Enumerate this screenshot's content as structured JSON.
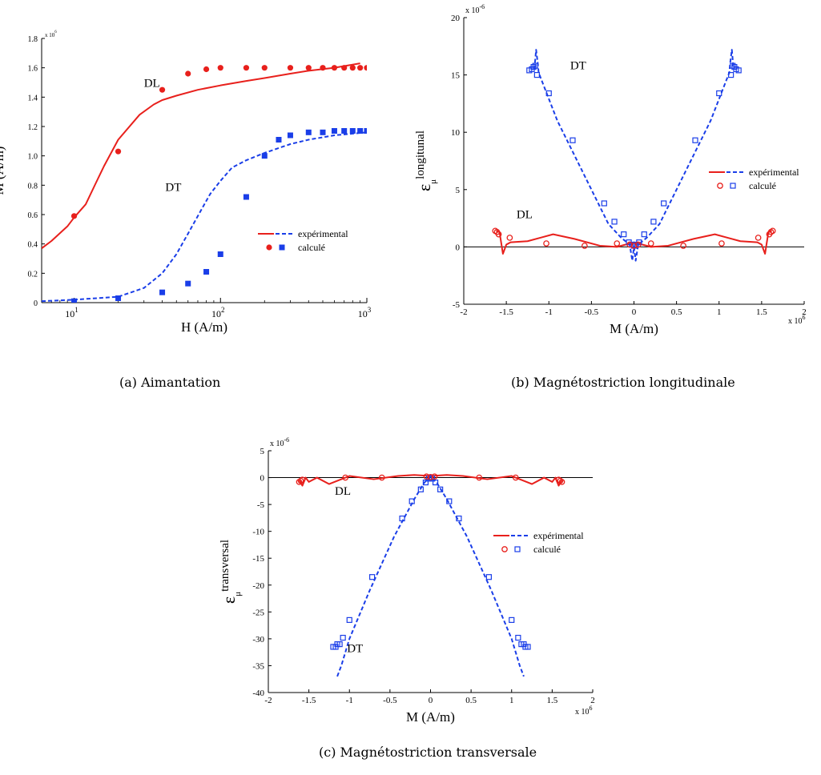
{
  "colors": {
    "experimental_red": "#e8201c",
    "experimental_blue": "#1a3ee8",
    "axis": "#000000"
  },
  "chart_data": [
    {
      "id": "a",
      "caption": "(a)  Aimantation",
      "type": "line",
      "xscale": "log",
      "xlim": [
        6,
        1000
      ],
      "ylim": [
        0,
        1800000
      ],
      "x_exponent_label": "x 10",
      "x_exponent_sup": "6",
      "yticks": [
        0,
        200000,
        400000,
        600000,
        800000,
        1000000,
        1200000,
        1400000,
        1600000,
        1800000
      ],
      "ytick_labels": [
        "0",
        "0.2",
        "0.4",
        "0.6",
        "0.8",
        "1.0",
        "1.2",
        "1.4",
        "1.6",
        "1.8"
      ],
      "xticks": [
        10,
        100,
        1000
      ],
      "xtick_base": "10",
      "xtick_exps": [
        "1",
        "2",
        "3"
      ],
      "xlabel": "H (A/m)",
      "ylabel": "M (A/m)",
      "grid": false,
      "legend": {
        "position": "center-right",
        "exp_label": "expérimental",
        "calc_label": "calculé"
      },
      "annotations": [
        {
          "text": "DL",
          "x": 30,
          "y": 1470000
        },
        {
          "text": "DT",
          "x": 42,
          "y": 760000
        }
      ],
      "series": [
        {
          "group": "DL",
          "kind": "experimental",
          "style": "solid",
          "color": "#e8201c",
          "x": [
            6,
            7,
            9,
            10,
            12,
            14,
            16,
            20,
            28,
            35,
            40,
            50,
            70,
            100,
            150,
            200,
            300,
            400,
            600,
            900
          ],
          "y": [
            370000,
            420000,
            520000,
            580000,
            670000,
            810000,
            930000,
            1110000,
            1280000,
            1350000,
            1380000,
            1410000,
            1450000,
            1480000,
            1510000,
            1530000,
            1560000,
            1580000,
            1600000,
            1630000
          ]
        },
        {
          "group": "DT",
          "kind": "experimental",
          "style": "dashed",
          "color": "#1a3ee8",
          "x": [
            6,
            10,
            20,
            30,
            40,
            50,
            60,
            70,
            85,
            100,
            120,
            150,
            200,
            300,
            400,
            600,
            1000
          ],
          "y": [
            10000,
            20000,
            40000,
            100000,
            200000,
            330000,
            470000,
            590000,
            740000,
            830000,
            920000,
            970000,
            1020000,
            1080000,
            1110000,
            1140000,
            1160000
          ]
        },
        {
          "group": "DL",
          "kind": "calculated",
          "marker": "filled-circle",
          "color": "#e8201c",
          "x": [
            10,
            20,
            40,
            60,
            80,
            100,
            150,
            200,
            300,
            400,
            500,
            600,
            700,
            800,
            900,
            1000
          ],
          "y": [
            590000,
            1030000,
            1450000,
            1560000,
            1590000,
            1600000,
            1600000,
            1600000,
            1600000,
            1600000,
            1600000,
            1600000,
            1600000,
            1600000,
            1600000,
            1600000
          ]
        },
        {
          "group": "DT",
          "kind": "calculated",
          "marker": "filled-square",
          "color": "#1a3ee8",
          "x": [
            10,
            20,
            40,
            60,
            80,
            100,
            150,
            200,
            250,
            300,
            400,
            500,
            600,
            700,
            800,
            900,
            1000
          ],
          "y": [
            10000,
            30000,
            70000,
            130000,
            210000,
            330000,
            720000,
            1000000,
            1110000,
            1140000,
            1160000,
            1160000,
            1170000,
            1170000,
            1170000,
            1170000,
            1170000
          ]
        }
      ]
    },
    {
      "id": "b",
      "caption": "(b)  Magnétostriction longitudinale",
      "type": "line",
      "xlim": [
        -2000000,
        2000000
      ],
      "ylim": [
        -5e-06,
        2e-05
      ],
      "xticks": [
        -2000000,
        -1500000,
        -1000000,
        -500000,
        0,
        500000,
        1000000,
        1500000,
        2000000
      ],
      "xtick_labels": [
        "-2",
        "-1.5",
        "-1",
        "-0.5",
        "0",
        "0.5",
        "1",
        "1.5",
        "2"
      ],
      "yticks": [
        -5e-06,
        0,
        5e-06,
        1e-05,
        1.5e-05,
        2e-05
      ],
      "ytick_labels": [
        "-5",
        "0",
        "5",
        "10",
        "15",
        "20"
      ],
      "x_exponent_label": "x 10",
      "x_exponent_sup": "6",
      "y_exponent_label": "x 10",
      "y_exponent_sup": "-6",
      "xlabel": "M (A/m)",
      "ylabel_symbol": "ε",
      "ylabel_sub": "μ",
      "ylabel_sup": "longitunal",
      "grid": false,
      "zero_line": true,
      "legend": {
        "position": "center-right",
        "exp_label": "expérimental",
        "calc_label": "calculé"
      },
      "annotations": [
        {
          "text": "DT",
          "x": -750000,
          "y": 1.55e-05
        },
        {
          "text": "DL",
          "x": -1380000,
          "y": 2.5e-06
        }
      ],
      "series": [
        {
          "group": "DT",
          "kind": "experimental",
          "style": "dashed",
          "color": "#1a3ee8",
          "x": [
            -1170000,
            -1150000,
            -1130000,
            -1120000,
            -900000,
            -600000,
            -300000,
            -150000,
            -50000,
            -20000,
            0,
            20000,
            50000,
            150000,
            300000,
            600000,
            900000,
            1120000,
            1130000,
            1150000,
            1170000
          ],
          "y": [
            1.55e-05,
            1.72e-05,
            1.6e-05,
            1.52e-05,
            1.1e-05,
            6.5e-06,
            2e-06,
            8e-07,
            2e-07,
            -1.2e-06,
            0,
            -1.2e-06,
            2e-07,
            8e-07,
            2e-06,
            6.5e-06,
            1.1e-05,
            1.52e-05,
            1.6e-05,
            1.72e-05,
            1.55e-05
          ]
        },
        {
          "group": "DL",
          "kind": "experimental",
          "style": "solid",
          "color": "#e8201c",
          "x": [
            -1620000,
            -1580000,
            -1540000,
            -1500000,
            -1450000,
            -1250000,
            -1100000,
            -950000,
            -700000,
            -400000,
            -200000,
            0,
            200000,
            400000,
            700000,
            950000,
            1100000,
            1250000,
            1450000,
            1500000,
            1540000,
            1580000,
            1620000
          ],
          "y": [
            1.4e-06,
            1.3e-06,
            -6e-07,
            2e-07,
            4e-07,
            5e-07,
            8e-07,
            1.1e-06,
            7e-07,
            1e-07,
            0,
            4e-07,
            0,
            1e-07,
            7e-07,
            1.1e-06,
            8e-07,
            5e-07,
            4e-07,
            2e-07,
            -6e-07,
            1.3e-06,
            1.4e-06
          ]
        },
        {
          "group": "DT",
          "kind": "calculated",
          "marker": "open-square",
          "color": "#1a3ee8",
          "x": [
            -1230000,
            -1200000,
            -1180000,
            -1160000,
            -1140000,
            -1000000,
            -720000,
            -350000,
            -230000,
            -120000,
            -60000,
            -20000,
            0,
            20000,
            60000,
            120000,
            230000,
            350000,
            720000,
            1000000,
            1140000,
            1160000,
            1180000,
            1200000,
            1230000
          ],
          "y": [
            1.54e-05,
            1.55e-05,
            1.57e-05,
            1.58e-05,
            1.5e-05,
            1.34e-05,
            9.3e-06,
            3.8e-06,
            2.2e-06,
            1.1e-06,
            4e-07,
            2e-07,
            1e-07,
            2e-07,
            4e-07,
            1.1e-06,
            2.2e-06,
            3.8e-06,
            9.3e-06,
            1.34e-05,
            1.5e-05,
            1.58e-05,
            1.57e-05,
            1.55e-05,
            1.54e-05
          ]
        },
        {
          "group": "DL",
          "kind": "calculated",
          "marker": "open-circle",
          "color": "#e8201c",
          "x": [
            -1630000,
            -1610000,
            -1590000,
            -1460000,
            -1030000,
            -580000,
            -200000,
            -50000,
            0,
            50000,
            200000,
            580000,
            1030000,
            1460000,
            1590000,
            1610000,
            1630000
          ],
          "y": [
            1.4e-06,
            1.3e-06,
            1.1e-06,
            8e-07,
            3e-07,
            1e-07,
            3e-07,
            2e-07,
            1e-07,
            2e-07,
            3e-07,
            1e-07,
            3e-07,
            8e-07,
            1.1e-06,
            1.3e-06,
            1.4e-06
          ]
        }
      ]
    },
    {
      "id": "c",
      "caption": "(c)  Magnétostriction transversale",
      "type": "line",
      "xlim": [
        -2000000,
        2000000
      ],
      "ylim": [
        -4e-05,
        5e-06
      ],
      "xticks": [
        -2000000,
        -1500000,
        -1000000,
        -500000,
        0,
        500000,
        1000000,
        1500000,
        2000000
      ],
      "xtick_labels": [
        "-2",
        "-1.5",
        "-1",
        "-0.5",
        "0",
        "0.5",
        "1",
        "1.5",
        "2"
      ],
      "yticks": [
        -4e-05,
        -3.5e-05,
        -3e-05,
        -2.5e-05,
        -2e-05,
        -1.5e-05,
        -1e-05,
        -5e-06,
        0,
        5e-06
      ],
      "ytick_labels": [
        "-40",
        "-35",
        "-30",
        "-25",
        "-20",
        "-15",
        "-10",
        "-5",
        "0",
        "5"
      ],
      "x_exponent_label": "x 10",
      "x_exponent_sup": "6",
      "y_exponent_label": "x 10",
      "y_exponent_sup": "-6",
      "xlabel": "M (A/m)",
      "ylabel_symbol": "ε",
      "ylabel_sub": "μ",
      "ylabel_sup": "transversal",
      "grid": false,
      "zero_line": true,
      "legend": {
        "position": "top-right",
        "exp_label": "expérimental",
        "calc_label": "calculé"
      },
      "annotations": [
        {
          "text": "DL",
          "x": -1180000,
          "y": -3.2e-06
        },
        {
          "text": "DT",
          "x": -1030000,
          "y": -3.25e-05
        }
      ],
      "series": [
        {
          "group": "DT",
          "kind": "experimental",
          "style": "dashed",
          "color": "#1a3ee8",
          "x": [
            -1150000,
            -1100000,
            -1000000,
            -750000,
            -450000,
            -200000,
            -80000,
            -20000,
            0,
            20000,
            80000,
            200000,
            450000,
            750000,
            1000000,
            1100000,
            1150000
          ],
          "y": [
            -3.7e-05,
            -3.5e-05,
            -3e-05,
            -2.1e-05,
            -1.1e-05,
            -4e-06,
            -1e-06,
            0,
            2e-07,
            0,
            -1e-06,
            -4e-06,
            -1.1e-05,
            -2.1e-05,
            -3e-05,
            -3.5e-05,
            -3.7e-05
          ]
        },
        {
          "group": "DL",
          "kind": "experimental",
          "style": "solid",
          "color": "#e8201c",
          "x": [
            -1620000,
            -1580000,
            -1540000,
            -1500000,
            -1400000,
            -1250000,
            -1000000,
            -700000,
            -400000,
            -200000,
            0,
            200000,
            400000,
            700000,
            1000000,
            1250000,
            1400000,
            1500000,
            1540000,
            1580000,
            1620000
          ],
          "y": [
            -5e-07,
            -1.5e-06,
            0,
            -8e-07,
            0,
            -1.2e-06,
            3e-07,
            -3e-07,
            3e-07,
            5e-07,
            3e-07,
            5e-07,
            3e-07,
            -3e-07,
            3e-07,
            -1.2e-06,
            0,
            -8e-07,
            0,
            -1.5e-06,
            -5e-07
          ]
        },
        {
          "group": "DT",
          "kind": "calculated",
          "marker": "open-square",
          "color": "#1a3ee8",
          "x": [
            -1200000,
            -1170000,
            -1150000,
            -1120000,
            -1080000,
            -1000000,
            -720000,
            -350000,
            -230000,
            -120000,
            -60000,
            -20000,
            0,
            20000,
            60000,
            120000,
            230000,
            350000,
            720000,
            1000000,
            1080000,
            1120000,
            1150000,
            1170000,
            1200000
          ],
          "y": [
            -3.15e-05,
            -3.15e-05,
            -3.1e-05,
            -3.1e-05,
            -2.98e-05,
            -2.65e-05,
            -1.85e-05,
            -7.6e-06,
            -4.4e-06,
            -2.2e-06,
            -9e-07,
            -2e-07,
            0,
            -2e-07,
            -9e-07,
            -2.2e-06,
            -4.4e-06,
            -7.6e-06,
            -1.85e-05,
            -2.65e-05,
            -2.98e-05,
            -3.1e-05,
            -3.1e-05,
            -3.15e-05,
            -3.15e-05
          ]
        },
        {
          "group": "DL",
          "kind": "calculated",
          "marker": "open-circle",
          "color": "#e8201c",
          "x": [
            -1620000,
            -1600000,
            -1580000,
            -1050000,
            -600000,
            -50000,
            0,
            50000,
            600000,
            1050000,
            1580000,
            1600000,
            1620000
          ],
          "y": [
            -8e-07,
            -6e-07,
            -4e-07,
            0,
            0,
            2e-07,
            1e-07,
            2e-07,
            0,
            0,
            -4e-07,
            -6e-07,
            -8e-07
          ]
        }
      ]
    }
  ]
}
